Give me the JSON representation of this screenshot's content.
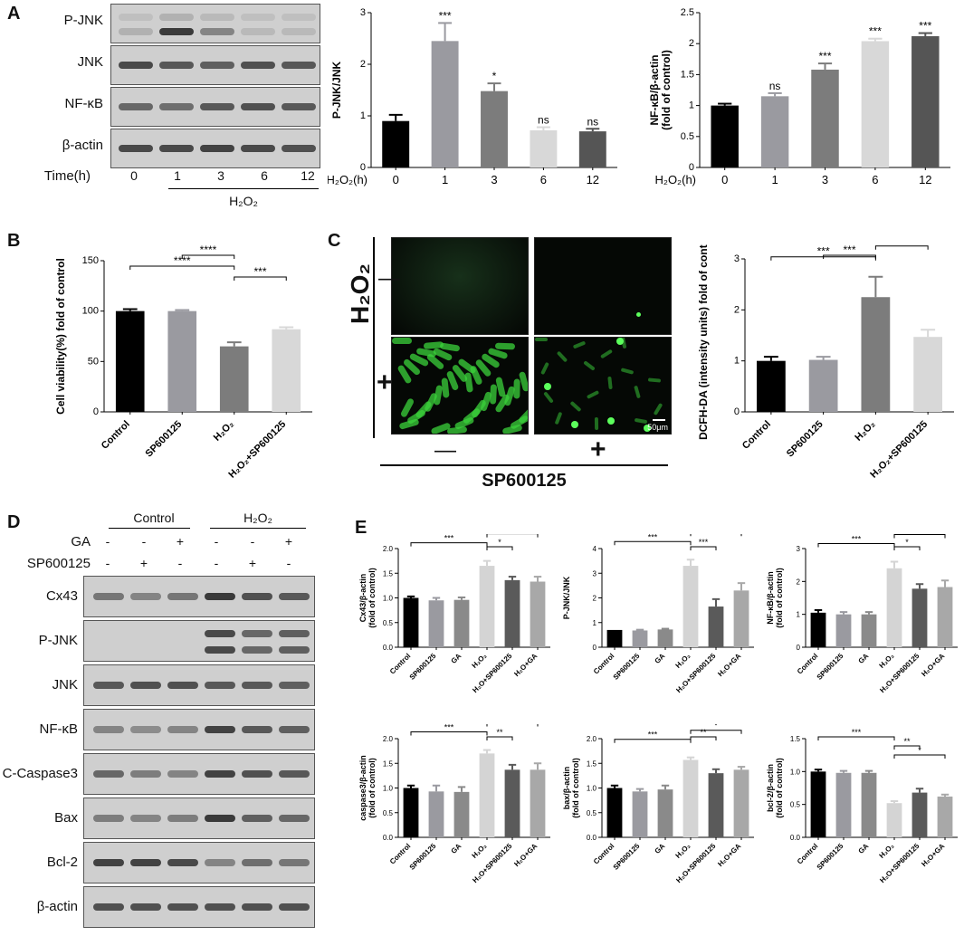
{
  "panels": [
    "A",
    "B",
    "C",
    "D",
    "E"
  ],
  "A": {
    "blot_labels": [
      "P-JNK",
      "JNK",
      "NF-κB",
      "β-actin"
    ],
    "time_label": "Time(h)",
    "time_values": [
      "0",
      "1",
      "3",
      "6",
      "12"
    ],
    "treatment": "H₂O₂",
    "chart1": {
      "type": "bar",
      "ylabel": "P-JNK/JNK",
      "xaxis_label": "H₂O₂(h)",
      "categories": [
        "0",
        "1",
        "3",
        "6",
        "12"
      ],
      "values": [
        0.9,
        2.45,
        1.48,
        0.72,
        0.7
      ],
      "errors": [
        0.12,
        0.35,
        0.15,
        0.06,
        0.05
      ],
      "sig": [
        "",
        "***",
        "*",
        "ns",
        "ns"
      ],
      "ylim": [
        0,
        3
      ],
      "ticks": [
        0,
        1,
        2,
        3
      ],
      "colors": [
        "#000000",
        "#9a9aa0",
        "#7c7c7c",
        "#d8d8d8",
        "#555555"
      ]
    },
    "chart2": {
      "type": "bar",
      "ylabel": "NF-κB/β-actin (fold of control)",
      "xaxis_label": "H₂O₂(h)",
      "categories": [
        "0",
        "1",
        "3",
        "6",
        "12"
      ],
      "values": [
        1.0,
        1.15,
        1.58,
        2.04,
        2.12
      ],
      "errors": [
        0.03,
        0.05,
        0.1,
        0.04,
        0.05
      ],
      "sig": [
        "",
        "ns",
        "***",
        "***",
        "***"
      ],
      "ylim": [
        0,
        2.5
      ],
      "ticks": [
        0.0,
        0.5,
        1.0,
        1.5,
        2.0,
        2.5
      ],
      "colors": [
        "#000000",
        "#9a9aa0",
        "#7c7c7c",
        "#d8d8d8",
        "#555555"
      ]
    }
  },
  "B": {
    "type": "bar",
    "ylabel": "Cell viability(%) fold of control",
    "categories": [
      "Control",
      "SP600125",
      "H₂O₂",
      "H₂O₂+SP600125"
    ],
    "values": [
      100,
      100,
      65,
      82
    ],
    "errors": [
      2,
      1,
      4,
      2
    ],
    "ylim": [
      0,
      150
    ],
    "ticks": [
      0,
      50,
      100,
      150
    ],
    "colors": [
      "#000000",
      "#9a9aa0",
      "#7c7c7c",
      "#d8d8d8"
    ],
    "brackets": [
      {
        "from": 1,
        "to": 2,
        "label": "****"
      },
      {
        "from": 0,
        "to": 2,
        "label": "****"
      },
      {
        "from": 2,
        "to": 3,
        "label": "***"
      }
    ]
  },
  "C": {
    "h2o2_label": "H₂O₂",
    "row_signs": [
      "—",
      "+"
    ],
    "col_signs": [
      "—",
      "+"
    ],
    "sp_label": "SP600125",
    "scale": "50μm",
    "chart": {
      "type": "bar",
      "ylabel": "DCFH-DA (intensity units) fold of control",
      "categories": [
        "Control",
        "SP600125",
        "H₂O₂",
        "H₂O₂+SP600125"
      ],
      "values": [
        1.0,
        1.02,
        2.25,
        1.47
      ],
      "errors": [
        0.08,
        0.06,
        0.4,
        0.14
      ],
      "ylim": [
        0,
        3
      ],
      "ticks": [
        0,
        1,
        2,
        3
      ],
      "colors": [
        "#000000",
        "#9a9aa0",
        "#7c7c7c",
        "#d8d8d8"
      ],
      "brackets": [
        {
          "from": 1,
          "to": 2,
          "label": "***"
        },
        {
          "from": 0,
          "to": 2,
          "label": "***"
        },
        {
          "from": 2,
          "to": 3,
          "label": "**"
        }
      ]
    }
  },
  "D": {
    "group_labels": [
      "Control",
      "H₂O₂"
    ],
    "rows": [
      {
        "name": "GA",
        "signs": [
          "-",
          "-",
          "+",
          "-",
          "-",
          "+"
        ]
      },
      {
        "name": "SP600125",
        "signs": [
          "-",
          "+",
          "-",
          "-",
          "+",
          "-"
        ]
      }
    ],
    "blot_labels": [
      "Cx43",
      "P-JNK",
      "JNK",
      "NF-κB",
      "C-Caspase3",
      "Bax",
      "Bcl-2",
      "β-actin"
    ]
  },
  "E": {
    "categories": [
      "Control",
      "SP600125",
      "GA",
      "H₂O₂",
      "H₂O+SP600125",
      "H₂O+GA"
    ],
    "colors": [
      "#000000",
      "#9a9aa0",
      "#8a8a8a",
      "#d4d4d4",
      "#5a5a5a",
      "#a8a8a8"
    ],
    "charts": [
      {
        "ylabel": "Cx43/β-actin (fold of control)",
        "values": [
          1.0,
          0.95,
          0.96,
          1.65,
          1.36,
          1.33
        ],
        "errors": [
          0.03,
          0.05,
          0.05,
          0.1,
          0.07,
          0.1
        ],
        "ylim": [
          0,
          2.0
        ],
        "ticks": [
          "0.0",
          "0.5",
          "1.0",
          "1.5",
          "2.0"
        ],
        "brackets": [
          {
            "from": 3,
            "to": 4,
            "label": "*"
          },
          {
            "from": 0,
            "to": 3,
            "label": "***"
          },
          {
            "from": 3,
            "to": 5,
            "label": "*"
          }
        ]
      },
      {
        "ylabel": "P-JNK/JNK",
        "values": [
          0.7,
          0.68,
          0.72,
          3.3,
          1.65,
          2.3
        ],
        "errors": [
          0,
          0.03,
          0.03,
          0.25,
          0.3,
          0.3
        ],
        "ylim": [
          0,
          4
        ],
        "ticks": [
          "0",
          "1",
          "2",
          "3",
          "4"
        ],
        "brackets": [
          {
            "from": 3,
            "to": 4,
            "label": "***"
          },
          {
            "from": 0,
            "to": 3,
            "label": "***"
          },
          {
            "from": 3,
            "to": 5,
            "label": "**"
          }
        ]
      },
      {
        "ylabel": "NF-κB/β-actin (fold of control)",
        "values": [
          1.05,
          1.0,
          1.0,
          2.4,
          1.78,
          1.83
        ],
        "errors": [
          0.08,
          0.07,
          0.07,
          0.2,
          0.14,
          0.2
        ],
        "ylim": [
          0,
          3
        ],
        "ticks": [
          "0",
          "1",
          "2",
          "3"
        ],
        "brackets": [
          {
            "from": 3,
            "to": 4,
            "label": "*"
          },
          {
            "from": 0,
            "to": 3,
            "label": "***"
          },
          {
            "from": 3,
            "to": 5,
            "label": "*"
          }
        ]
      },
      {
        "ylabel": "caspase3/β-actin (fold of control)",
        "values": [
          1.0,
          0.93,
          0.92,
          1.7,
          1.37,
          1.37
        ],
        "errors": [
          0.05,
          0.12,
          0.1,
          0.07,
          0.1,
          0.13
        ],
        "ylim": [
          0,
          2.0
        ],
        "ticks": [
          "0.0",
          "0.5",
          "1.0",
          "1.5",
          "2.0"
        ],
        "brackets": [
          {
            "from": 3,
            "to": 4,
            "label": "**"
          },
          {
            "from": 0,
            "to": 3,
            "label": "***"
          },
          {
            "from": 3,
            "to": 5,
            "label": "*"
          }
        ]
      },
      {
        "ylabel": "bax/β-actin (fold of control)",
        "values": [
          1.0,
          0.93,
          0.97,
          1.57,
          1.3,
          1.37
        ],
        "errors": [
          0.05,
          0.05,
          0.08,
          0.05,
          0.08,
          0.06
        ],
        "ylim": [
          0,
          2.0
        ],
        "ticks": [
          "0.0",
          "0.5",
          "1.0",
          "1.5",
          "2.0"
        ],
        "brackets": [
          {
            "from": 3,
            "to": 4,
            "label": "**"
          },
          {
            "from": 0,
            "to": 3,
            "label": "***"
          },
          {
            "from": 3,
            "to": 5,
            "label": "*"
          }
        ]
      },
      {
        "ylabel": "bcl-2/β-actin (fold of control)",
        "values": [
          1.0,
          0.98,
          0.98,
          0.52,
          0.68,
          0.62
        ],
        "errors": [
          0.03,
          0.03,
          0.03,
          0.03,
          0.06,
          0.03
        ],
        "ylim": [
          0,
          1.5
        ],
        "ticks": [
          "0.0",
          "0.5",
          "1.0",
          "1.5"
        ],
        "brackets": [
          {
            "from": 0,
            "to": 3,
            "label": "***"
          },
          {
            "from": 3,
            "to": 4,
            "label": "**"
          },
          {
            "from": 3,
            "to": 5,
            "label": "*"
          }
        ]
      }
    ]
  }
}
